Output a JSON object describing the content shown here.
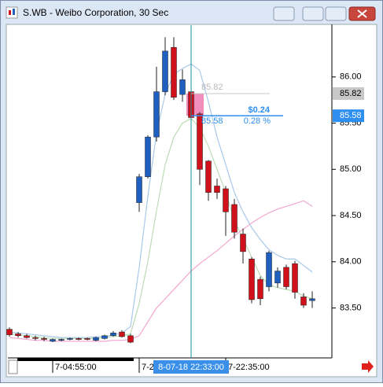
{
  "chart_data": {
    "type": "candlestick",
    "title": "S.WB - Weibo Corporation, 30 Sec",
    "categories": [
      null,
      null,
      null,
      null,
      null,
      "7-04:55:00",
      null,
      null,
      null,
      null,
      null,
      null,
      null,
      null,
      null,
      "7-2",
      null,
      null,
      null,
      null,
      null,
      null,
      null,
      null,
      null,
      "7-22:35:00",
      null,
      null,
      null,
      null,
      null,
      null,
      null,
      null,
      null,
      null
    ],
    "open": [
      83.27,
      83.22,
      83.2,
      83.18,
      83.17,
      83.14,
      83.15,
      83.16,
      83.17,
      83.17,
      83.15,
      83.17,
      83.2,
      83.24,
      83.2,
      84.64,
      84.92,
      85.35,
      85.84,
      86.32,
      85.81,
      85.84,
      85.6,
      85.09,
      84.82,
      84.79,
      84.62,
      84.3,
      84.03,
      83.81,
      83.73,
      83.77,
      83.94,
      83.98,
      83.62,
      83.58
    ],
    "high": [
      83.29,
      83.24,
      83.22,
      83.2,
      83.19,
      83.17,
      83.17,
      83.18,
      83.18,
      83.18,
      83.19,
      83.21,
      83.25,
      83.26,
      83.22,
      84.95,
      85.37,
      86.11,
      86.43,
      86.43,
      86.08,
      85.89,
      85.62,
      85.1,
      84.9,
      84.82,
      84.68,
      84.36,
      84.05,
      83.84,
      84.12,
      83.94,
      83.97,
      84.01,
      83.66,
      83.68
    ],
    "low": [
      83.19,
      83.18,
      83.17,
      83.15,
      83.14,
      83.13,
      83.14,
      83.15,
      83.15,
      83.15,
      83.14,
      83.16,
      83.19,
      83.18,
      83.12,
      84.54,
      84.9,
      85.3,
      85.8,
      85.75,
      85.73,
      85.52,
      84.83,
      84.66,
      84.68,
      84.28,
      84.25,
      83.98,
      83.55,
      83.53,
      83.68,
      83.72,
      83.7,
      83.6,
      83.5,
      83.5
    ],
    "close": [
      83.21,
      83.2,
      83.18,
      83.17,
      83.16,
      83.16,
      83.16,
      83.17,
      83.16,
      83.16,
      83.18,
      83.2,
      83.23,
      83.19,
      83.13,
      84.92,
      85.35,
      85.84,
      86.28,
      85.78,
      85.97,
      85.56,
      85.0,
      84.75,
      84.75,
      84.54,
      84.32,
      84.11,
      83.59,
      83.6,
      84.1,
      83.9,
      83.73,
      83.67,
      83.53,
      83.6
    ],
    "up_color": "#1f5fbf",
    "down_color": "#d0101a",
    "series": [
      {
        "color": "#a9c8ea",
        "values": [
          83.24,
          83.23,
          83.22,
          83.21,
          83.2,
          83.19,
          83.18,
          83.18,
          83.18,
          83.18,
          83.19,
          83.19,
          83.21,
          83.23,
          83.3,
          83.94,
          84.71,
          85.39,
          85.81,
          86.03,
          86.09,
          86.14,
          86.07,
          85.73,
          85.35,
          85.05,
          84.75,
          84.54,
          84.37,
          84.24,
          84.13,
          84.07,
          84.03,
          84.03,
          83.96,
          83.89
        ]
      },
      {
        "color": "#bcdcb4",
        "values": [
          83.22,
          83.21,
          83.2,
          83.19,
          83.18,
          83.17,
          83.17,
          83.17,
          83.17,
          83.17,
          83.17,
          83.18,
          83.19,
          83.2,
          83.22,
          83.55,
          84.0,
          84.55,
          85.05,
          85.35,
          85.5,
          85.55,
          85.45,
          85.25,
          85.0,
          84.75,
          84.45,
          84.25,
          84.05,
          83.85,
          83.75,
          83.72,
          83.7,
          83.68,
          83.63,
          83.6
        ]
      },
      {
        "color": "#f2a6cf",
        "values": [
          83.18,
          83.17,
          83.16,
          83.15,
          83.15,
          83.14,
          83.14,
          83.14,
          83.14,
          83.14,
          83.14,
          83.14,
          83.15,
          83.15,
          83.16,
          83.2,
          83.35,
          83.5,
          83.6,
          83.7,
          83.8,
          83.9,
          83.98,
          84.05,
          84.12,
          84.2,
          84.28,
          84.35,
          84.42,
          84.48,
          84.53,
          84.57,
          84.6,
          84.63,
          84.66,
          84.6
        ]
      }
    ],
    "ylim": [
      82.96,
      86.56
    ],
    "yticks": [
      {
        "value": 86,
        "label": "86.00"
      },
      {
        "value": 85.5,
        "label": "85.50"
      },
      {
        "value": 85,
        "label": "85.00"
      },
      {
        "value": 84.5,
        "label": "84.50"
      },
      {
        "value": 84,
        "label": "84.00"
      },
      {
        "value": 83.5,
        "label": "83.50"
      }
    ],
    "price_tags": [
      {
        "value": 85.82,
        "label": "85.82",
        "color": "#c8c8c8"
      },
      {
        "value": 85.58,
        "label": "85.58",
        "color": "#2e8ff0"
      }
    ],
    "measure": {
      "start": {
        "value": 85.82,
        "label": "85.82"
      },
      "end": {
        "value": 85.58,
        "label": "85.58"
      },
      "change": {
        "value": 0.24,
        "label": "$0.24"
      },
      "percent": {
        "value": 0.28,
        "label": "0.28 %"
      }
    },
    "crosshair_label": "8-07-18 22:33:00"
  }
}
